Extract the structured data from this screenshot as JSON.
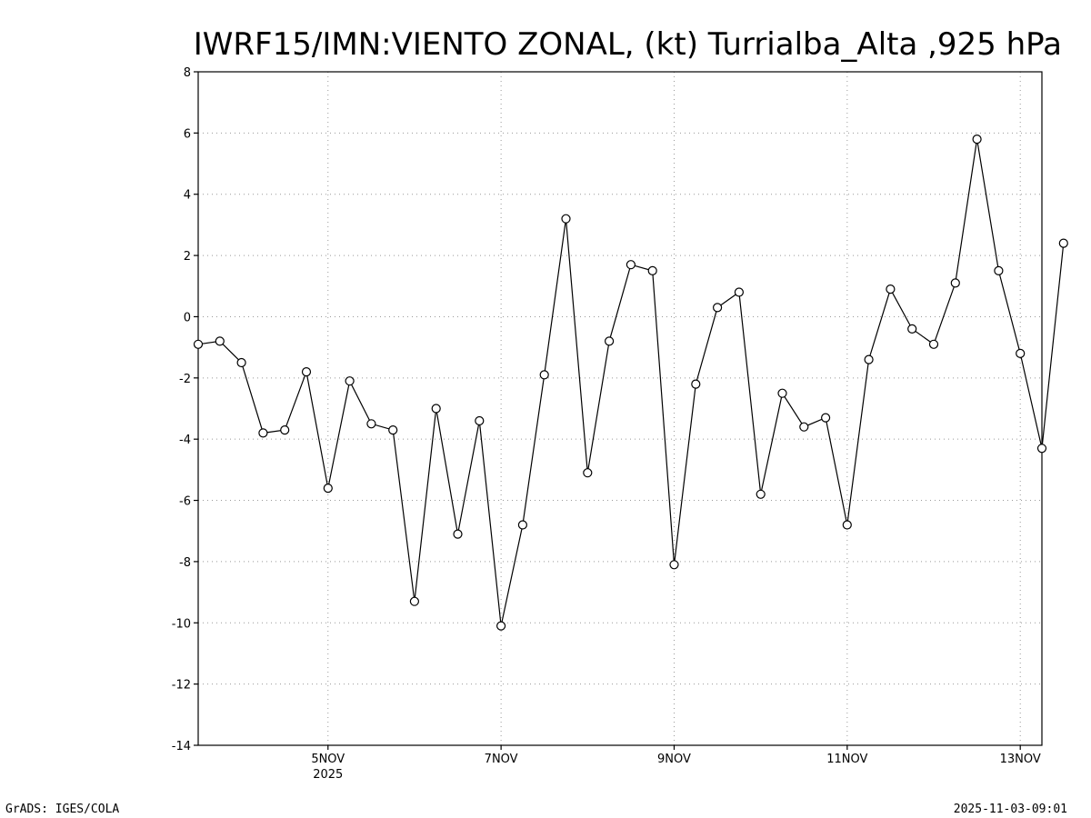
{
  "chart_data": {
    "type": "line",
    "title": "IWRF15/IMN:VIENTO ZONAL, (kt) Turrialba_Alta ,925 hPa",
    "ylim": [
      -14,
      8
    ],
    "yticks": [
      "8",
      "6",
      "4",
      "2",
      "0",
      "-2",
      "-4",
      "-6",
      "-8",
      "-10",
      "-12",
      "-14"
    ],
    "ytick_values": [
      8,
      6,
      4,
      2,
      0,
      -2,
      -4,
      -6,
      -8,
      -10,
      -12,
      -14
    ],
    "xlim": [
      "2025-11-03T12:00",
      "2025-11-13T06:00"
    ],
    "xticks": [
      {
        "date": "2025-11-05",
        "label": "5NOV",
        "sublabel": "2025"
      },
      {
        "date": "2025-11-07",
        "label": "7NOV",
        "sublabel": ""
      },
      {
        "date": "2025-11-09",
        "label": "9NOV",
        "sublabel": ""
      },
      {
        "date": "2025-11-11",
        "label": "11NOV",
        "sublabel": ""
      },
      {
        "date": "2025-11-13",
        "label": "13NOV",
        "sublabel": ""
      }
    ],
    "grid": true,
    "series": [
      {
        "color": "#000000",
        "marker": "open-circle",
        "points": [
          {
            "x": "2025-11-03T12:00",
            "y": -0.9
          },
          {
            "x": "2025-11-03T18:00",
            "y": -0.8
          },
          {
            "x": "2025-11-04T00:00",
            "y": -1.5
          },
          {
            "x": "2025-11-04T06:00",
            "y": -3.8
          },
          {
            "x": "2025-11-04T12:00",
            "y": -3.7
          },
          {
            "x": "2025-11-04T18:00",
            "y": -1.8
          },
          {
            "x": "2025-11-05T00:00",
            "y": -5.6
          },
          {
            "x": "2025-11-05T06:00",
            "y": -2.1
          },
          {
            "x": "2025-11-05T12:00",
            "y": -3.5
          },
          {
            "x": "2025-11-05T18:00",
            "y": -3.7
          },
          {
            "x": "2025-11-06T00:00",
            "y": -9.3
          },
          {
            "x": "2025-11-06T06:00",
            "y": -3.0
          },
          {
            "x": "2025-11-06T12:00",
            "y": -7.1
          },
          {
            "x": "2025-11-06T18:00",
            "y": -3.4
          },
          {
            "x": "2025-11-07T00:00",
            "y": -10.1
          },
          {
            "x": "2025-11-07T06:00",
            "y": -6.8
          },
          {
            "x": "2025-11-07T12:00",
            "y": -1.9
          },
          {
            "x": "2025-11-07T18:00",
            "y": 3.2
          },
          {
            "x": "2025-11-08T00:00",
            "y": -5.1
          },
          {
            "x": "2025-11-08T06:00",
            "y": -0.8
          },
          {
            "x": "2025-11-08T12:00",
            "y": 1.7
          },
          {
            "x": "2025-11-08T18:00",
            "y": 1.5
          },
          {
            "x": "2025-11-09T00:00",
            "y": -8.1
          },
          {
            "x": "2025-11-09T06:00",
            "y": -2.2
          },
          {
            "x": "2025-11-09T12:00",
            "y": 0.3
          },
          {
            "x": "2025-11-09T18:00",
            "y": 0.8
          },
          {
            "x": "2025-11-10T00:00",
            "y": -5.8
          },
          {
            "x": "2025-11-10T06:00",
            "y": -2.5
          },
          {
            "x": "2025-11-10T12:00",
            "y": -3.6
          },
          {
            "x": "2025-11-10T18:00",
            "y": -3.3
          },
          {
            "x": "2025-11-11T00:00",
            "y": -6.8
          },
          {
            "x": "2025-11-11T06:00",
            "y": -1.4
          },
          {
            "x": "2025-11-11T12:00",
            "y": 0.9
          },
          {
            "x": "2025-11-11T18:00",
            "y": -0.4
          },
          {
            "x": "2025-11-12T00:00",
            "y": -0.9
          },
          {
            "x": "2025-11-12T06:00",
            "y": 1.1
          },
          {
            "x": "2025-11-12T12:00",
            "y": 5.8
          },
          {
            "x": "2025-11-12T18:00",
            "y": 1.5
          },
          {
            "x": "2025-11-13T00:00",
            "y": -1.2
          },
          {
            "x": "2025-11-13T06:00",
            "y": -4.3
          },
          {
            "x": "2025-11-13T12:00",
            "y": 2.4
          }
        ]
      }
    ]
  },
  "footer": {
    "left": "GrADS: IGES/COLA",
    "right": "2025-11-03-09:01"
  }
}
